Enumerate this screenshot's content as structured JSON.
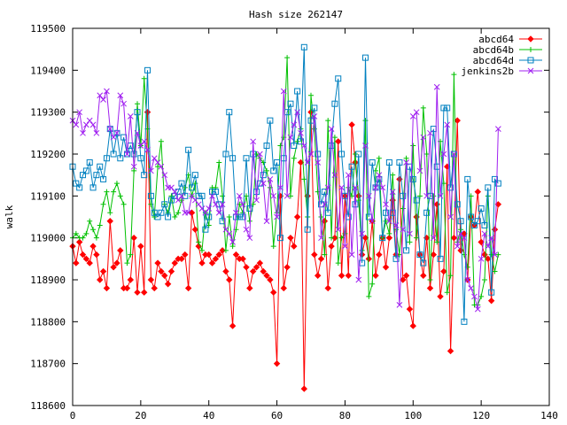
{
  "chart_data": {
    "type": "line",
    "title": "Hash size 262147",
    "xlabel": "",
    "ylabel": "walk",
    "xlim": [
      0,
      140
    ],
    "ylim": [
      118600,
      119500
    ],
    "xticks": [
      0,
      20,
      40,
      60,
      80,
      100,
      120,
      140
    ],
    "yticks": [
      118600,
      118700,
      118800,
      118900,
      119000,
      119100,
      119200,
      119300,
      119400,
      119500
    ],
    "grid": false,
    "legend_position": "top-right",
    "series": [
      {
        "name": "abcd64",
        "color": "#ff0000",
        "marker": "diamond",
        "x_start": 0,
        "values": [
          118980,
          118940,
          118990,
          118960,
          118950,
          118940,
          118980,
          118960,
          118900,
          118920,
          118880,
          119040,
          118930,
          118940,
          118970,
          118880,
          118880,
          118900,
          119000,
          118870,
          118980,
          118870,
          119300,
          118900,
          118880,
          118940,
          118920,
          118910,
          118890,
          118920,
          118940,
          118950,
          118950,
          118960,
          118880,
          119060,
          119020,
          118980,
          118940,
          118960,
          118960,
          118940,
          118950,
          118960,
          118970,
          118920,
          118900,
          118790,
          118960,
          118950,
          118950,
          118930,
          118880,
          118920,
          118930,
          118940,
          118920,
          118910,
          118900,
          118870,
          118700,
          119100,
          118880,
          118930,
          119000,
          118980,
          119050,
          119180,
          118640,
          119100,
          119300,
          118960,
          118910,
          118950,
          119040,
          118880,
          118980,
          119000,
          119230,
          118910,
          119100,
          118910,
          119270,
          119180,
          119100,
          118960,
          119000,
          118950,
          119040,
          118910,
          118960,
          119000,
          118930,
          119000,
          119090,
          118960,
          119140,
          118900,
          118910,
          118830,
          118790,
          119050,
          118960,
          118910,
          119000,
          118880,
          118960,
          119080,
          118860,
          118920,
          119170,
          118730,
          119000,
          119280,
          118970,
          119010,
          118900,
          119050,
          119030,
          119110,
          118990,
          118960,
          118950,
          118850,
          119020,
          119080
        ]
      },
      {
        "name": "abcd64b",
        "color": "#00c000",
        "marker": "plus",
        "x_start": 0,
        "values": [
          119000,
          119010,
          119000,
          119000,
          119010,
          119040,
          119020,
          119000,
          119030,
          119080,
          119110,
          119060,
          119110,
          119130,
          119100,
          119080,
          118940,
          118960,
          119160,
          119320,
          119220,
          119380,
          119260,
          119080,
          119050,
          119170,
          119230,
          119080,
          119060,
          119100,
          119050,
          119060,
          119090,
          119120,
          119150,
          119100,
          119130,
          118990,
          118970,
          119060,
          119030,
          119120,
          119120,
          119180,
          119100,
          118970,
          119050,
          118980,
          119020,
          119080,
          119060,
          119100,
          119040,
          119080,
          119200,
          119190,
          119180,
          119160,
          119120,
          118980,
          119060,
          119220,
          119240,
          119430,
          119100,
          119190,
          119230,
          119260,
          119140,
          119050,
          119340,
          119260,
          119110,
          119050,
          118960,
          119280,
          119000,
          119240,
          118940,
          119000,
          119010,
          119120,
          119100,
          119200,
          119090,
          118970,
          119280,
          118860,
          118890,
          119160,
          119190,
          119000,
          119040,
          119010,
          119150,
          119020,
          118960,
          119070,
          119190,
          118990,
          119220,
          119000,
          119100,
          119310,
          119200,
          118900,
          119100,
          118990,
          119230,
          119130,
          118870,
          118910,
          119390,
          118990,
          119020,
          118960,
          118930,
          119100,
          118840,
          118840,
          118860,
          118900,
          119100,
          118960,
          118920,
          118960
        ]
      },
      {
        "name": "abcd64d",
        "color": "#0080c0",
        "marker": "square",
        "x_start": 0,
        "values": [
          119170,
          119130,
          119120,
          119150,
          119160,
          119180,
          119120,
          119150,
          119170,
          119140,
          119190,
          119260,
          119200,
          119250,
          119190,
          119240,
          119200,
          119220,
          119200,
          119300,
          119190,
          119150,
          119400,
          119100,
          119060,
          119050,
          119060,
          119080,
          119050,
          119090,
          119100,
          119110,
          119130,
          119100,
          119210,
          119120,
          119150,
          119100,
          119100,
          119020,
          119050,
          119110,
          119110,
          119080,
          119040,
          119200,
          119300,
          119190,
          119050,
          119050,
          119050,
          119190,
          119070,
          119200,
          119110,
          119130,
          119150,
          119220,
          119280,
          119160,
          119180,
          119000,
          119190,
          119300,
          119320,
          119220,
          119350,
          119230,
          119455,
          119020,
          119280,
          119310,
          119200,
          119080,
          119110,
          119060,
          119220,
          119320,
          119380,
          119200,
          119100,
          119050,
          119170,
          119080,
          119200,
          118940,
          119430,
          119050,
          119180,
          119120,
          119140,
          119000,
          119060,
          119180,
          119060,
          118950,
          119180,
          119100,
          118970,
          119170,
          119140,
          119090,
          118960,
          118940,
          119060,
          119100,
          119260,
          119170,
          118950,
          119310,
          119310,
          119120,
          119200,
          119080,
          119040,
          118800,
          119140,
          119050,
          119030,
          119040,
          119070,
          119030,
          119120,
          118870,
          119140,
          119130
        ]
      },
      {
        "name": "jenkins2b",
        "color": "#a020f0",
        "marker": "cross",
        "x_start": 0,
        "values": [
          119280,
          119270,
          119300,
          119250,
          119270,
          119280,
          119270,
          119250,
          119340,
          119330,
          119350,
          119260,
          119240,
          119250,
          119340,
          119320,
          119200,
          119290,
          119170,
          119250,
          119220,
          119230,
          119210,
          119160,
          119190,
          119180,
          119170,
          119150,
          119120,
          119120,
          119110,
          119090,
          119100,
          119060,
          119060,
          119100,
          119090,
          119080,
          119070,
          119060,
          119070,
          119100,
          119080,
          119060,
          119080,
          119020,
          119010,
          118990,
          119060,
          119100,
          119080,
          119020,
          119000,
          119230,
          119090,
          119200,
          119130,
          119040,
          119140,
          119100,
          119050,
          119120,
          119350,
          119100,
          119240,
          119270,
          119300,
          119250,
          119220,
          119180,
          119200,
          119290,
          119180,
          119000,
          119080,
          119120,
          119260,
          119150,
          119020,
          119120,
          118980,
          119150,
          118960,
          119120,
          118900,
          119010,
          119220,
          119100,
          119040,
          119120,
          119150,
          119120,
          119080,
          119040,
          119110,
          119030,
          118840,
          119020,
          119180,
          119010,
          119290,
          119300,
          119160,
          119240,
          119100,
          119250,
          119000,
          119360,
          119100,
          119200,
          119270,
          119050,
          119200,
          118980,
          119010,
          119000,
          118900,
          118880,
          118860,
          118830,
          118950,
          119010,
          118980,
          119000,
          118960,
          119260
        ]
      }
    ]
  }
}
